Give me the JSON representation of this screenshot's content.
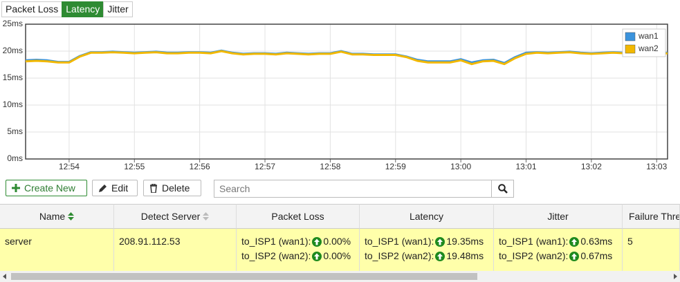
{
  "tabs": [
    {
      "label": "Packet Loss",
      "active": false
    },
    {
      "label": "Latency",
      "active": true
    },
    {
      "label": "Jitter",
      "active": false
    }
  ],
  "chart_data": {
    "type": "line",
    "categories": [
      null,
      null,
      null,
      null,
      "12:54",
      null,
      null,
      null,
      null,
      null,
      "12:55",
      null,
      null,
      null,
      null,
      null,
      "12:56",
      null,
      null,
      null,
      null,
      null,
      "12:57",
      null,
      null,
      null,
      null,
      null,
      "12:58",
      null,
      null,
      null,
      null,
      null,
      "12:59",
      null,
      null,
      null,
      null,
      null,
      "13:00",
      null,
      null,
      null,
      null,
      null,
      "13:01",
      null,
      null,
      null,
      null,
      null,
      "13:02",
      null,
      null,
      null,
      null,
      null,
      "13:03",
      null
    ],
    "series": [
      {
        "name": "wan1",
        "color": "#3b93dc",
        "values": [
          18.3,
          18.4,
          18.3,
          18.0,
          18.0,
          19.1,
          19.8,
          19.8,
          19.9,
          19.8,
          19.7,
          19.8,
          19.9,
          19.7,
          19.7,
          19.8,
          19.8,
          19.7,
          20.1,
          19.7,
          19.5,
          19.6,
          19.6,
          19.5,
          19.7,
          19.6,
          19.5,
          19.6,
          19.6,
          20.0,
          19.5,
          19.5,
          19.4,
          19.4,
          19.4,
          19.0,
          18.4,
          18.1,
          18.1,
          18.1,
          18.5,
          17.9,
          18.3,
          18.4,
          17.8,
          18.9,
          19.7,
          19.8,
          19.7,
          19.8,
          19.9,
          19.7,
          19.6,
          19.7,
          19.8,
          19.7,
          19.4,
          19.5,
          19.6,
          19.7
        ]
      },
      {
        "name": "wan2",
        "color": "#f2b800",
        "values": [
          18.1,
          18.2,
          18.1,
          17.9,
          17.9,
          19.0,
          19.7,
          19.7,
          19.8,
          19.7,
          19.6,
          19.7,
          19.8,
          19.6,
          19.6,
          19.7,
          19.7,
          19.6,
          20.0,
          19.6,
          19.4,
          19.5,
          19.5,
          19.4,
          19.6,
          19.5,
          19.4,
          19.5,
          19.5,
          19.9,
          19.4,
          19.4,
          19.3,
          19.3,
          19.3,
          18.9,
          18.2,
          17.9,
          17.9,
          17.9,
          18.3,
          17.6,
          18.1,
          18.2,
          17.6,
          18.7,
          19.5,
          19.7,
          19.6,
          19.7,
          19.8,
          19.6,
          19.5,
          19.6,
          19.7,
          19.6,
          19.3,
          19.4,
          19.5,
          19.6
        ]
      }
    ],
    "ylim": [
      0,
      25
    ],
    "yticks": [
      {
        "value": 0,
        "label": "0ms"
      },
      {
        "value": 5,
        "label": "5ms"
      },
      {
        "value": 10,
        "label": "10ms"
      },
      {
        "value": 15,
        "label": "15ms"
      },
      {
        "value": 20,
        "label": "20ms"
      },
      {
        "value": 25,
        "label": "25ms"
      }
    ],
    "grid": true,
    "legend": "top-right"
  },
  "toolbar": {
    "create": "Create New",
    "edit": "Edit",
    "delete": "Delete",
    "search_placeholder": "Search"
  },
  "table": {
    "columns": [
      "Name",
      "Detect Server",
      "Packet Loss",
      "Latency",
      "Jitter",
      "Failure Thre"
    ],
    "rows": [
      {
        "name": "server",
        "detect_server": "208.91.112.53",
        "packet_loss": [
          {
            "label": "to_ISP1 (wan1):",
            "value": "0.00%"
          },
          {
            "label": "to_ISP2 (wan2):",
            "value": "0.00%"
          }
        ],
        "latency": [
          {
            "label": "to_ISP1 (wan1):",
            "value": "19.35ms"
          },
          {
            "label": "to_ISP2 (wan2):",
            "value": "19.48ms"
          }
        ],
        "jitter": [
          {
            "label": "to_ISP1 (wan1):",
            "value": "0.63ms"
          },
          {
            "label": "to_ISP2 (wan2):",
            "value": "0.67ms"
          }
        ],
        "failure_threshold": "5"
      }
    ]
  }
}
